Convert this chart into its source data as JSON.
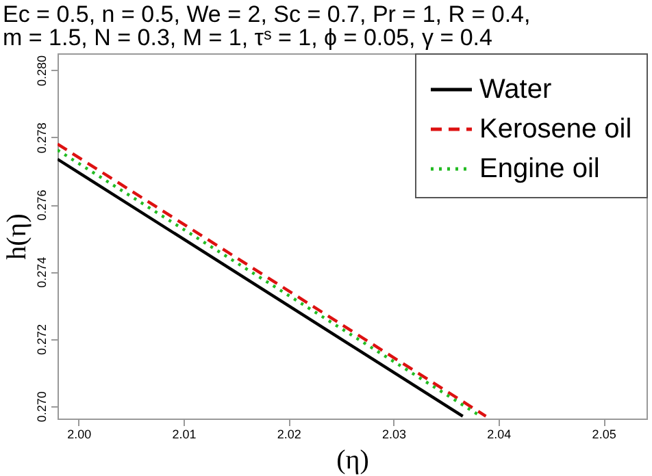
{
  "chart_data": {
    "type": "line",
    "title": "Ec = 0.5,  n = 0.5,   We = 2,  Sc = 0.7,   Pr = 1,   R = 0.4,",
    "subtitle": "m = 1.5,  N = 0.3,    M = 1,     τˢ = 1,   ϕ = 0.05,  γ = 0.4",
    "xlabel": "(η)",
    "ylabel": "h(η)",
    "series": [
      {
        "name": "Water",
        "color": "#000000",
        "line_style": "solid",
        "x": [
          1.998,
          2.0366
        ],
        "values": [
          0.27735,
          0.2697
        ]
      },
      {
        "name": "Kerosene oil",
        "color": "#dd1111",
        "line_style": "dashed",
        "x": [
          1.998,
          2.0388
        ],
        "values": [
          0.2778,
          0.2697
        ]
      },
      {
        "name": "Engine oil",
        "color": "#22bb22",
        "line_style": "dotted",
        "x": [
          1.998,
          2.0383
        ],
        "values": [
          0.27762,
          0.2697
        ]
      }
    ],
    "xlim": [
      1.998,
      2.0541
    ],
    "ylim": [
      0.26963,
      0.2805
    ],
    "xticks": [
      {
        "value": 2.0,
        "label": "2.00"
      },
      {
        "value": 2.01,
        "label": "2.01"
      },
      {
        "value": 2.02,
        "label": "2.02"
      },
      {
        "value": 2.03,
        "label": "2.03"
      },
      {
        "value": 2.04,
        "label": "2.04"
      },
      {
        "value": 2.05,
        "label": "2.05"
      }
    ],
    "yticks": [
      {
        "value": 0.27,
        "label": "0.270"
      },
      {
        "value": 0.272,
        "label": "0.272"
      },
      {
        "value": 0.274,
        "label": "0.274"
      },
      {
        "value": 0.276,
        "label": "0.276"
      },
      {
        "value": 0.278,
        "label": "0.278"
      },
      {
        "value": 0.28,
        "label": "0.280"
      }
    ],
    "grid": false,
    "legend": "top right"
  }
}
